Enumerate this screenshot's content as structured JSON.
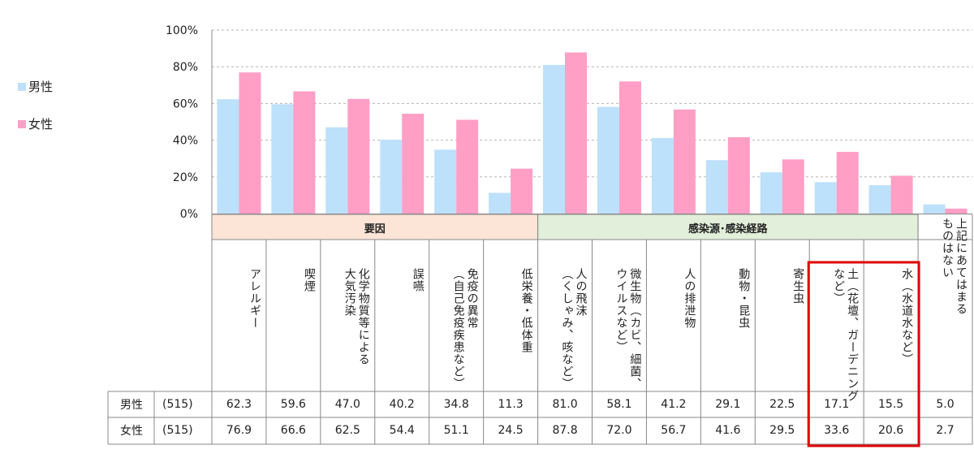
{
  "legend": {
    "male": {
      "label": "男性",
      "color": "#bde0fb"
    },
    "female": {
      "label": "女性",
      "color": "#ff9fc6"
    }
  },
  "groups": [
    {
      "label": "要因",
      "from": 0,
      "to": 5,
      "color": "#fce4d6"
    },
    {
      "label": "感染源･感染経路",
      "from": 6,
      "to": 12,
      "color": "#e2efda"
    }
  ],
  "highlight": {
    "from": 11,
    "to": 12,
    "color": "#e00000"
  },
  "table": {
    "rows": [
      {
        "label": "男性",
        "n": "(515)"
      },
      {
        "label": "女性",
        "n": "(515)"
      }
    ]
  },
  "chart_data": {
    "type": "bar",
    "yticks": [
      "0%",
      "20%",
      "40%",
      "60%",
      "80%",
      "100%"
    ],
    "ylim": [
      0,
      100
    ],
    "categories": [
      "アレルギー",
      "喫煙",
      "化学物質等による\n大気汚染",
      "誤嚥",
      "免疫の異常\n（自己免疫疾患など）",
      "低栄養・低体重",
      "人の飛沫\n（くしゃみ、咳など）",
      "微生物（カビ、細菌、\nウイルスなど）",
      "人の排泄物",
      "動物・昆虫",
      "寄生虫",
      "土（花壇、ガーデニング\nなど）",
      "水（水道水など）",
      "上記にあてはまる\nものはない"
    ],
    "series": [
      {
        "name": "男性",
        "values": [
          62.3,
          59.6,
          47.0,
          40.2,
          34.8,
          11.3,
          81.0,
          58.1,
          41.2,
          29.1,
          22.5,
          17.1,
          15.5,
          5.0
        ],
        "labels": [
          "62.3",
          "59.6",
          "47.0",
          "40.2",
          "34.8",
          "11.3",
          "81.0",
          "58.1",
          "41.2",
          "29.1",
          "22.5",
          "17.1",
          "15.5",
          "5.0"
        ]
      },
      {
        "name": "女性",
        "values": [
          76.9,
          66.6,
          62.5,
          54.4,
          51.1,
          24.5,
          87.8,
          72.0,
          56.7,
          41.6,
          29.5,
          33.6,
          20.6,
          2.7
        ],
        "labels": [
          "76.9",
          "66.6",
          "62.5",
          "54.4",
          "51.1",
          "24.5",
          "87.8",
          "72.0",
          "56.7",
          "41.6",
          "29.5",
          "33.6",
          "20.6",
          "2.7"
        ]
      }
    ]
  }
}
